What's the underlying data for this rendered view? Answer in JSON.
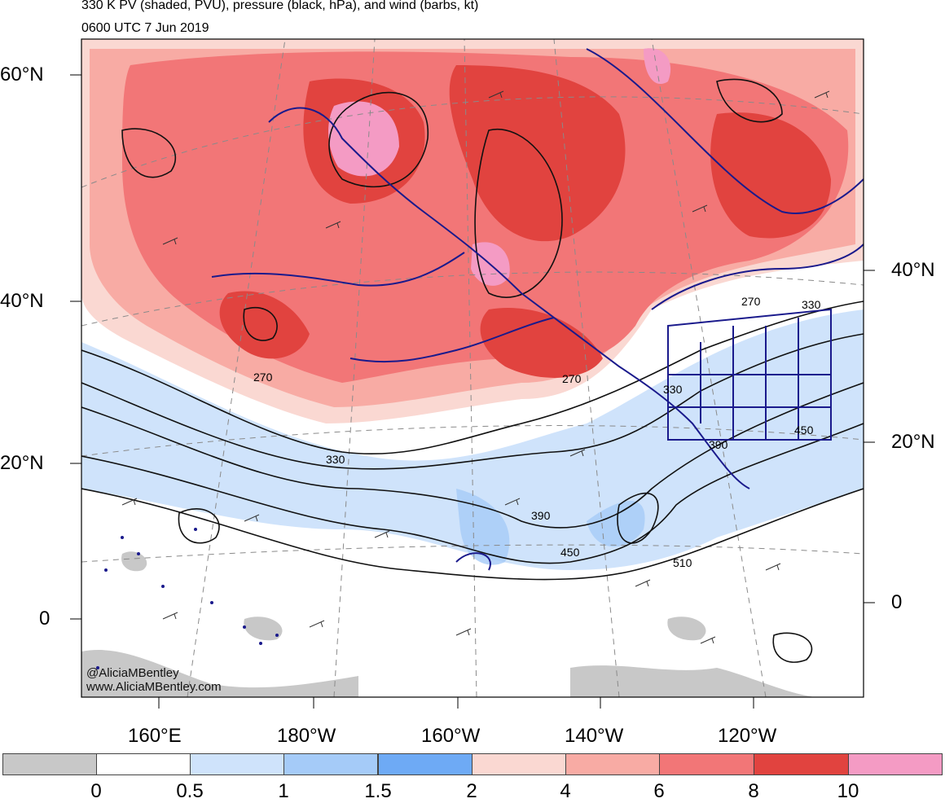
{
  "title_line1": "330 K PV (shaded, PVU), pressure (black, hPa), and wind (barbs, kt)",
  "title_line2": "0600 UTC 7 Jun 2019",
  "lat_labels_left": [
    "60°N",
    "40°N",
    "20°N",
    "0"
  ],
  "lat_labels_right": [
    "40°N",
    "20°N",
    "0"
  ],
  "lon_labels": [
    "160°E",
    "180°W",
    "160°W",
    "140°W",
    "120°W"
  ],
  "contour_labels": [
    "270",
    "270",
    "330",
    "390",
    "450",
    "510",
    "330",
    "390",
    "450",
    "270",
    "330"
  ],
  "credits": [
    "@AliciaMBentley",
    "www.AliciaMBentley.com"
  ],
  "colorbar": {
    "tick_labels": [
      "0",
      "0.5",
      "1",
      "1.5",
      "2",
      "4",
      "6",
      "8",
      "10"
    ],
    "colors": [
      "#c8c8c8",
      "#ffffff",
      "#cfe3fb",
      "#a5cbf8",
      "#6eaaf5",
      "#fad8d2",
      "#f8aba4",
      "#f27677",
      "#e1433f",
      "#f49bc4"
    ]
  },
  "colors": {
    "land_outline": "#1a1a8c",
    "contour": "#111111",
    "grid": "#8a8a8a"
  }
}
